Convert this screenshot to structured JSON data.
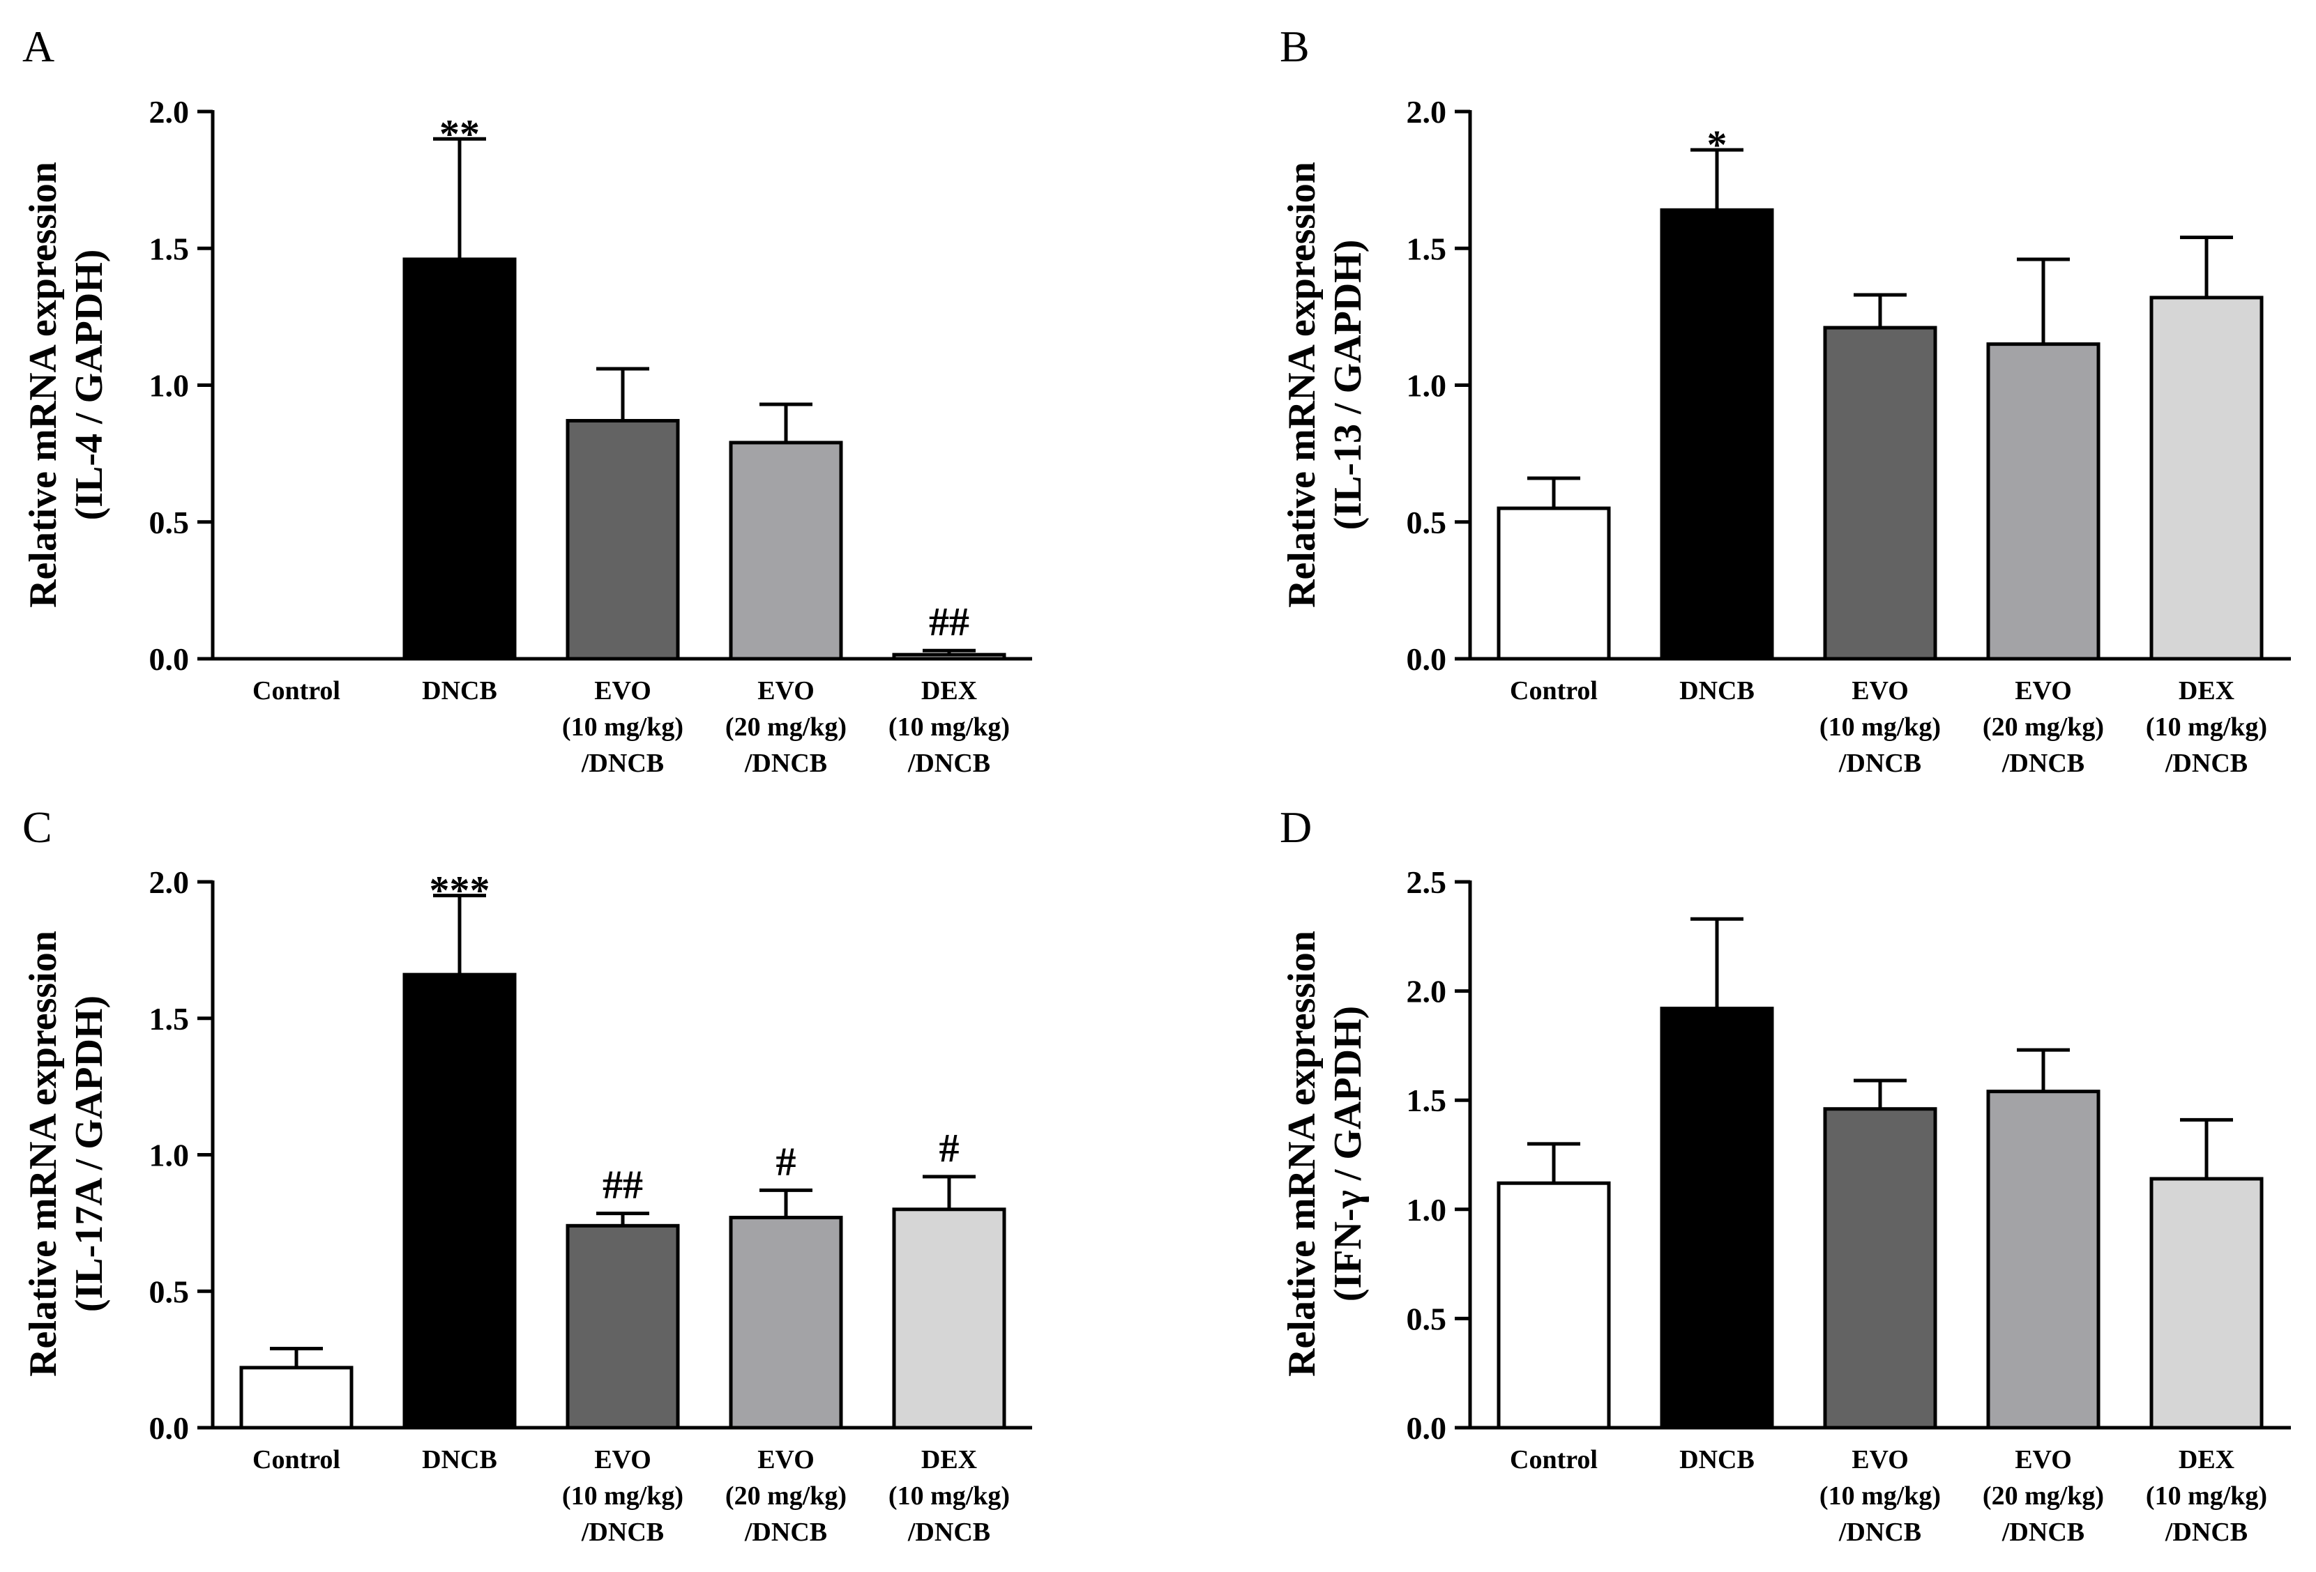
{
  "chart_data": [
    {
      "panel": "A",
      "type": "bar",
      "ylabel": [
        "Relative mRNA expression",
        "(IL-4 / GAPDH)"
      ],
      "ylim": [
        0,
        2.0
      ],
      "yticks": [
        "0.0",
        "0.5",
        "1.0",
        "1.5",
        "2.0"
      ],
      "categories": [
        [
          "Control"
        ],
        [
          "DNCB"
        ],
        [
          "EVO",
          "(10 mg/kg)",
          "/DNCB"
        ],
        [
          "EVO",
          "(20 mg/kg)",
          "/DNCB"
        ],
        [
          "DEX",
          "(10 mg/kg)",
          "/DNCB"
        ]
      ],
      "values": [
        0.0,
        1.46,
        0.87,
        0.79,
        0.015
      ],
      "errors": [
        0.0,
        0.44,
        0.19,
        0.14,
        0.015
      ],
      "significance": [
        "",
        "**",
        "",
        "",
        "##"
      ],
      "colors": [
        "#ffffff",
        "#000000",
        "#636363",
        "#a3a3a6",
        "#d6d6d6"
      ]
    },
    {
      "panel": "B",
      "type": "bar",
      "ylabel": [
        "Relative mRNA expression",
        "(IL-13 / GAPDH)"
      ],
      "ylim": [
        0,
        2.0
      ],
      "yticks": [
        "0.0",
        "0.5",
        "1.0",
        "1.5",
        "2.0"
      ],
      "categories": [
        [
          "Control"
        ],
        [
          "DNCB"
        ],
        [
          "EVO",
          "(10 mg/kg)",
          "/DNCB"
        ],
        [
          "EVO",
          "(20 mg/kg)",
          "/DNCB"
        ],
        [
          "DEX",
          "(10 mg/kg)",
          "/DNCB"
        ]
      ],
      "values": [
        0.55,
        1.64,
        1.21,
        1.15,
        1.32
      ],
      "errors": [
        0.11,
        0.22,
        0.12,
        0.31,
        0.22
      ],
      "significance": [
        "",
        "*",
        "",
        "",
        ""
      ],
      "colors": [
        "#ffffff",
        "#000000",
        "#636363",
        "#a3a3a6",
        "#d6d6d6"
      ]
    },
    {
      "panel": "C",
      "type": "bar",
      "ylabel": [
        "Relative mRNA expression",
        "(IL-17A / GAPDH)"
      ],
      "ylim": [
        0,
        2.0
      ],
      "yticks": [
        "0.0",
        "0.5",
        "1.0",
        "1.5",
        "2.0"
      ],
      "categories": [
        [
          "Control"
        ],
        [
          "DNCB"
        ],
        [
          "EVO",
          "(10 mg/kg)",
          "/DNCB"
        ],
        [
          "EVO",
          "(20 mg/kg)",
          "/DNCB"
        ],
        [
          "DEX",
          "(10 mg/kg)",
          "/DNCB"
        ]
      ],
      "values": [
        0.22,
        1.66,
        0.74,
        0.77,
        0.8
      ],
      "errors": [
        0.07,
        0.29,
        0.045,
        0.1,
        0.12
      ],
      "significance": [
        "",
        "***",
        "##",
        "#",
        "#"
      ],
      "colors": [
        "#ffffff",
        "#000000",
        "#636363",
        "#a3a3a6",
        "#d6d6d6"
      ]
    },
    {
      "panel": "D",
      "type": "bar",
      "ylabel": [
        "Relative mRNA expression",
        "(IFN-γ / GAPDH)"
      ],
      "ylim": [
        0,
        2.5
      ],
      "yticks": [
        "0.0",
        "0.5",
        "1.0",
        "1.5",
        "2.0",
        "2.5"
      ],
      "categories": [
        [
          "Control"
        ],
        [
          "DNCB"
        ],
        [
          "EVO",
          "(10 mg/kg)",
          "/DNCB"
        ],
        [
          "EVO",
          "(20 mg/kg)",
          "/DNCB"
        ],
        [
          "DEX",
          "(10 mg/kg)",
          "/DNCB"
        ]
      ],
      "values": [
        1.12,
        1.92,
        1.46,
        1.54,
        1.14
      ],
      "errors": [
        0.18,
        0.41,
        0.13,
        0.19,
        0.27
      ],
      "significance": [
        "",
        "",
        "",
        "",
        ""
      ],
      "colors": [
        "#ffffff",
        "#000000",
        "#636363",
        "#a3a3a6",
        "#d6d6d6"
      ]
    }
  ]
}
